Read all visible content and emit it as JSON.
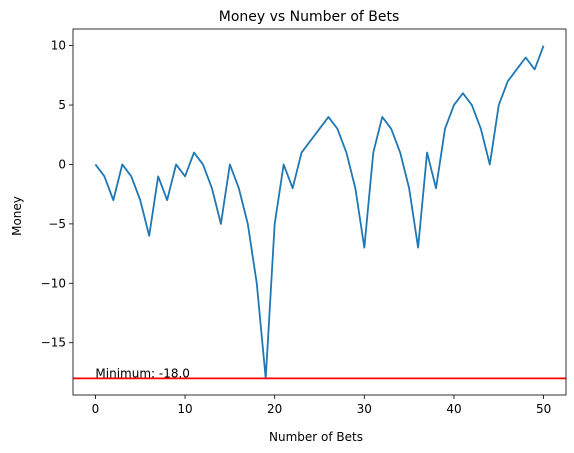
{
  "chart_data": {
    "type": "line",
    "title": "Money vs Number of Bets",
    "xlabel": "Number of Bets",
    "ylabel": "Money",
    "xlim": [
      -2.5,
      52.5
    ],
    "ylim": [
      -19.4,
      11.4
    ],
    "x_ticks": [
      0,
      10,
      20,
      30,
      40,
      50
    ],
    "x_tick_labels": [
      "0",
      "10",
      "20",
      "30",
      "40",
      "50"
    ],
    "y_ticks": [
      -15,
      -10,
      -5,
      0,
      5,
      10
    ],
    "y_tick_labels": [
      "−15",
      "−10",
      "−5",
      "0",
      "5",
      "10"
    ],
    "grid": false,
    "series": [
      {
        "color": "#1f77b4",
        "x": [
          0,
          1,
          2,
          3,
          4,
          5,
          6,
          7,
          8,
          9,
          10,
          11,
          12,
          13,
          14,
          15,
          16,
          17,
          18,
          19,
          20,
          21,
          22,
          23,
          24,
          25,
          26,
          27,
          28,
          29,
          30,
          31,
          32,
          33,
          34,
          35,
          36,
          37,
          38,
          39,
          40,
          41,
          42,
          43,
          44,
          45,
          46,
          47,
          48,
          49,
          50
        ],
        "values": [
          0,
          -1,
          -3,
          0,
          -1,
          -3,
          -6,
          -1,
          -3,
          0,
          -1,
          1,
          0,
          -2,
          -5,
          0,
          -2,
          -5,
          -10,
          -18,
          -5,
          0,
          -2,
          1,
          2,
          3,
          4,
          3,
          1,
          -2,
          -7,
          1,
          4,
          3,
          1,
          -2,
          -7,
          1,
          -2,
          3,
          5,
          6,
          5,
          3,
          0,
          5,
          7,
          8,
          9,
          8,
          10
        ]
      }
    ],
    "hline": {
      "y": -18,
      "color": "#ff0000"
    },
    "annotation": {
      "text": "Minimum: -18.0",
      "x": 0,
      "y": -18
    }
  }
}
